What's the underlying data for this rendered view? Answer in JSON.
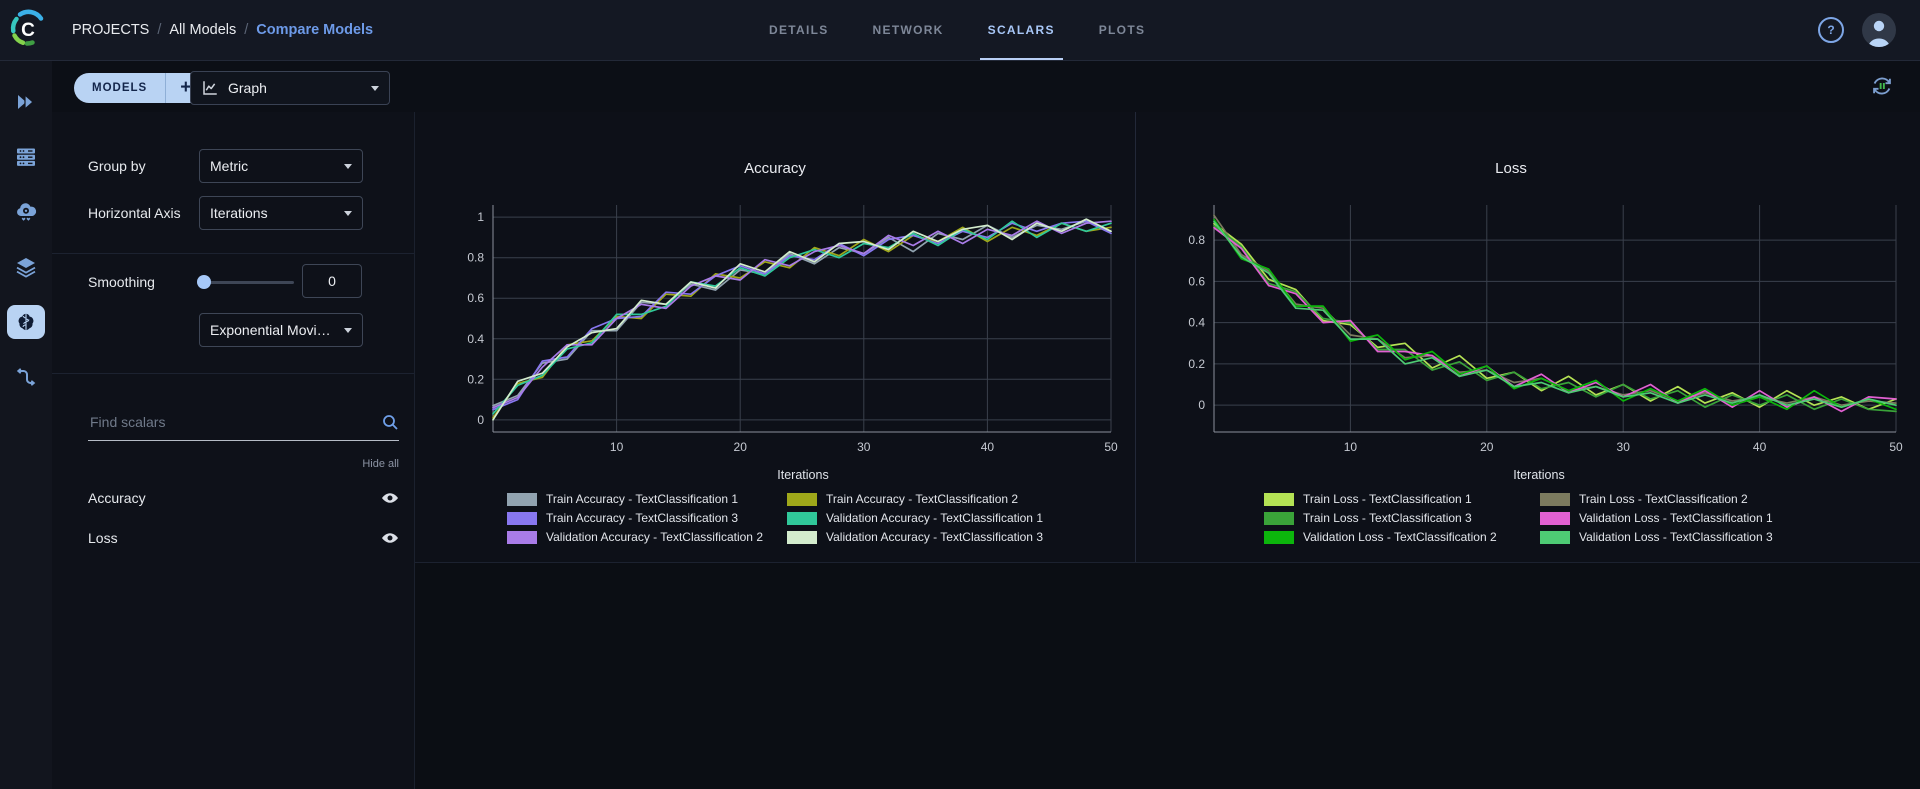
{
  "theme": {
    "accent": "#a6c5f7",
    "pill": "#b9d3f3",
    "background": "#0b0e14",
    "panel_bg": "#0e1119",
    "grid": "#3a404c"
  },
  "header": {
    "separator": "/",
    "breadcrumb": [
      {
        "label": "PROJECTS"
      },
      {
        "label": "All Models"
      },
      {
        "label": "Compare Models"
      }
    ],
    "tabs": [
      {
        "label": "DETAILS",
        "active": false
      },
      {
        "label": "NETWORK",
        "active": false
      },
      {
        "label": "SCALARS",
        "active": true
      },
      {
        "label": "PLOTS",
        "active": false
      }
    ]
  },
  "toolbar": {
    "models_button": "MODELS",
    "add_button": "+",
    "view_dropdown": "Graph"
  },
  "panel": {
    "group_by_label": "Group by",
    "group_by_value": "Metric",
    "horizontal_axis_label": "Horizontal Axis",
    "horizontal_axis_value": "Iterations",
    "smoothing_label": "Smoothing",
    "smoothing_value": "0",
    "smoothing_algorithm": "Exponential Moving Av...",
    "search_placeholder": "Find scalars",
    "hide_all_label": "Hide all",
    "metrics": [
      {
        "label": "Accuracy",
        "visible": true
      },
      {
        "label": "Loss",
        "visible": true
      }
    ]
  },
  "chart_data": [
    {
      "type": "line",
      "title": "Accuracy",
      "xlabel": "Iterations",
      "ylabel": "",
      "xlim": [
        0,
        50
      ],
      "ylim": [
        -0.06,
        1.06
      ],
      "xticks": [
        10,
        20,
        30,
        40,
        50
      ],
      "yticks": [
        0,
        0.2,
        0.4,
        0.6,
        0.8,
        1
      ],
      "x": [
        0,
        2,
        4,
        6,
        8,
        10,
        12,
        14,
        16,
        18,
        20,
        22,
        24,
        26,
        28,
        30,
        32,
        34,
        36,
        38,
        40,
        42,
        44,
        46,
        48,
        50
      ],
      "series": [
        {
          "name": "Train Accuracy - TextClassification 1",
          "color": "#91a3b0",
          "values": [
            0.07,
            0.12,
            0.28,
            0.3,
            0.44,
            0.44,
            0.58,
            0.57,
            0.67,
            0.64,
            0.74,
            0.72,
            0.82,
            0.77,
            0.85,
            0.82,
            0.9,
            0.83,
            0.92,
            0.89,
            0.96,
            0.9,
            0.96,
            0.94,
            0.98,
            0.93
          ]
        },
        {
          "name": "Train Accuracy - TextClassification 2",
          "color": "#9fa81a",
          "values": [
            0.01,
            0.18,
            0.21,
            0.37,
            0.39,
            0.51,
            0.5,
            0.62,
            0.61,
            0.72,
            0.7,
            0.78,
            0.75,
            0.85,
            0.81,
            0.89,
            0.83,
            0.91,
            0.88,
            0.95,
            0.88,
            0.95,
            0.91,
            0.97,
            0.93,
            0.95
          ]
        },
        {
          "name": "Train Accuracy - TextClassification 3",
          "color": "#8877f0",
          "values": [
            0.05,
            0.1,
            0.29,
            0.31,
            0.45,
            0.5,
            0.51,
            0.63,
            0.62,
            0.71,
            0.76,
            0.72,
            0.81,
            0.79,
            0.87,
            0.81,
            0.89,
            0.91,
            0.87,
            0.93,
            0.9,
            0.97,
            0.93,
            0.97,
            0.98,
            0.92
          ]
        },
        {
          "name": "Validation Accuracy - TextClassification 1",
          "color": "#30c89a",
          "values": [
            0.03,
            0.17,
            0.22,
            0.35,
            0.38,
            0.52,
            0.52,
            0.56,
            0.68,
            0.66,
            0.75,
            0.71,
            0.8,
            0.84,
            0.8,
            0.87,
            0.85,
            0.92,
            0.86,
            0.94,
            0.89,
            0.98,
            0.9,
            0.97,
            0.93,
            0.97
          ]
        },
        {
          "name": "Validation Accuracy - TextClassification 2",
          "color": "#a97ce8",
          "values": [
            0.06,
            0.11,
            0.26,
            0.37,
            0.37,
            0.5,
            0.57,
            0.55,
            0.66,
            0.71,
            0.69,
            0.79,
            0.76,
            0.83,
            0.86,
            0.82,
            0.91,
            0.86,
            0.93,
            0.87,
            0.94,
            0.91,
            0.98,
            0.92,
            0.97,
            0.98
          ]
        },
        {
          "name": "Validation Accuracy - TextClassification 3",
          "color": "#d3eccd",
          "values": [
            0.0,
            0.19,
            0.23,
            0.36,
            0.43,
            0.45,
            0.59,
            0.57,
            0.68,
            0.65,
            0.77,
            0.73,
            0.83,
            0.78,
            0.87,
            0.88,
            0.84,
            0.93,
            0.88,
            0.94,
            0.96,
            0.89,
            0.97,
            0.93,
            0.99,
            0.93
          ]
        }
      ]
    },
    {
      "type": "line",
      "title": "Loss",
      "xlabel": "Iterations",
      "ylabel": "",
      "xlim": [
        0,
        50
      ],
      "ylim": [
        -0.13,
        0.97
      ],
      "xticks": [
        10,
        20,
        30,
        40,
        50
      ],
      "yticks": [
        0,
        0.2,
        0.4,
        0.6,
        0.8
      ],
      "x": [
        0,
        2,
        4,
        6,
        8,
        10,
        12,
        14,
        16,
        18,
        20,
        22,
        24,
        26,
        28,
        30,
        32,
        34,
        36,
        38,
        40,
        42,
        44,
        46,
        48,
        50
      ],
      "series": [
        {
          "name": "Train Loss - TextClassification 1",
          "color": "#b4e254",
          "values": [
            0.88,
            0.78,
            0.61,
            0.56,
            0.41,
            0.39,
            0.28,
            0.3,
            0.18,
            0.24,
            0.13,
            0.16,
            0.07,
            0.14,
            0.05,
            0.1,
            0.02,
            0.09,
            0.01,
            0.06,
            -0.01,
            0.07,
            0.0,
            0.04,
            -0.02,
            0.03
          ]
        },
        {
          "name": "Train Loss - TextClassification 2",
          "color": "#7c7b5f",
          "values": [
            0.92,
            0.73,
            0.65,
            0.49,
            0.47,
            0.34,
            0.32,
            0.23,
            0.24,
            0.16,
            0.17,
            0.11,
            0.13,
            0.07,
            0.09,
            0.05,
            0.07,
            0.02,
            0.06,
            0.02,
            0.04,
            0.01,
            0.04,
            0.0,
            0.02,
            0.01
          ]
        },
        {
          "name": "Train Loss - TextClassification 3",
          "color": "#3aa339",
          "values": [
            0.87,
            0.77,
            0.59,
            0.55,
            0.42,
            0.4,
            0.27,
            0.27,
            0.17,
            0.21,
            0.12,
            0.16,
            0.08,
            0.11,
            0.04,
            0.1,
            0.03,
            0.07,
            -0.01,
            0.05,
            0.0,
            0.05,
            -0.02,
            0.03,
            -0.02,
            -0.03
          ]
        },
        {
          "name": "Validation Loss - TextClassification 1",
          "color": "#e160d2",
          "values": [
            0.86,
            0.76,
            0.58,
            0.54,
            0.4,
            0.41,
            0.26,
            0.26,
            0.24,
            0.14,
            0.19,
            0.09,
            0.15,
            0.06,
            0.11,
            0.04,
            0.1,
            0.01,
            0.07,
            -0.01,
            0.07,
            -0.01,
            0.04,
            -0.03,
            0.04,
            0.03
          ]
        },
        {
          "name": "Validation Loss - TextClassification 2",
          "color": "#0cb50c",
          "values": [
            0.9,
            0.71,
            0.66,
            0.48,
            0.48,
            0.31,
            0.34,
            0.22,
            0.26,
            0.15,
            0.19,
            0.08,
            0.13,
            0.07,
            0.12,
            0.02,
            0.08,
            0.02,
            0.08,
            0.0,
            0.04,
            -0.02,
            0.07,
            -0.01,
            0.03,
            -0.02
          ]
        },
        {
          "name": "Validation Loss - TextClassification 3",
          "color": "#4ecb74",
          "values": [
            0.89,
            0.72,
            0.64,
            0.47,
            0.46,
            0.32,
            0.32,
            0.2,
            0.23,
            0.14,
            0.17,
            0.09,
            0.11,
            0.06,
            0.09,
            0.04,
            0.06,
            0.01,
            0.05,
            0.01,
            0.05,
            0.0,
            0.03,
            -0.01,
            0.03,
            0.0
          ]
        }
      ]
    }
  ]
}
